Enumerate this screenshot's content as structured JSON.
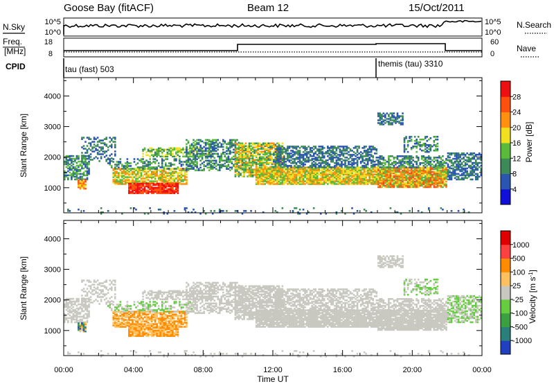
{
  "header": {
    "station": "Goose Bay (fitACF)",
    "beam": "Beam 12",
    "date": "15/Oct/2011"
  },
  "nsky_panel": {
    "left_label": "N.Sky",
    "right_label": "N.Search",
    "left_ticks": [
      "10^5",
      "10^0"
    ],
    "right_ticks": [
      "10^5",
      "10^0"
    ],
    "left_legend_style": "solid",
    "right_legend_style": "dotted"
  },
  "freq_panel": {
    "left_label_1": "Freq.",
    "left_label_2": "[MHz]",
    "right_label": "Nave",
    "left_ticks": [
      "18",
      "8"
    ],
    "right_ticks": [
      "60",
      "0"
    ],
    "left_legend_style": "solid",
    "right_legend_style": "dotted"
  },
  "cpid_panel": {
    "label": "CPID",
    "segments": [
      {
        "name": "tau (fast) 503",
        "start_hour": 0
      },
      {
        "name": "themis (tau) 3310",
        "start_hour": 18
      }
    ]
  },
  "chart_data": [
    {
      "type": "heatmap",
      "title": "Power",
      "xlabel": "",
      "ylabel": "Slant Range [km]",
      "ylim": [
        180,
        4600
      ],
      "y_ticks": [
        1000,
        2000,
        3000,
        4000
      ],
      "xlim": [
        0,
        24
      ],
      "colorbar": {
        "label": "Power [dB]",
        "ticks": [
          "4",
          "8",
          "12",
          "16",
          "20",
          "24",
          "28"
        ],
        "colors": [
          "#1010d8",
          "#2a56b2",
          "#3c8a58",
          "#5aba3a",
          "#f0e020",
          "#ff9010",
          "#ff5010",
          "#ee1010"
        ]
      }
    },
    {
      "type": "heatmap",
      "title": "Velocity",
      "xlabel": "Time UT",
      "ylabel": "Slant Range [km]",
      "ylim": [
        180,
        4600
      ],
      "y_ticks": [
        1000,
        2000,
        3000,
        4000
      ],
      "xlim": [
        0,
        24
      ],
      "x_ticks": [
        "00:00",
        "04:00",
        "08:00",
        "12:00",
        "16:00",
        "20:00",
        "00:00"
      ],
      "colorbar": {
        "label": "Velocity [m s^-1]",
        "ticks": [
          "1000",
          "500",
          "100",
          "25",
          "-25",
          "-100",
          "-500",
          "-1000"
        ],
        "colors": [
          "#2040c0",
          "#2a7f7a",
          "#3aa040",
          "#66cc40",
          "#c8c8c0",
          "#ffc060",
          "#ff8c00",
          "#ff4040",
          "#e00000"
        ]
      }
    }
  ]
}
